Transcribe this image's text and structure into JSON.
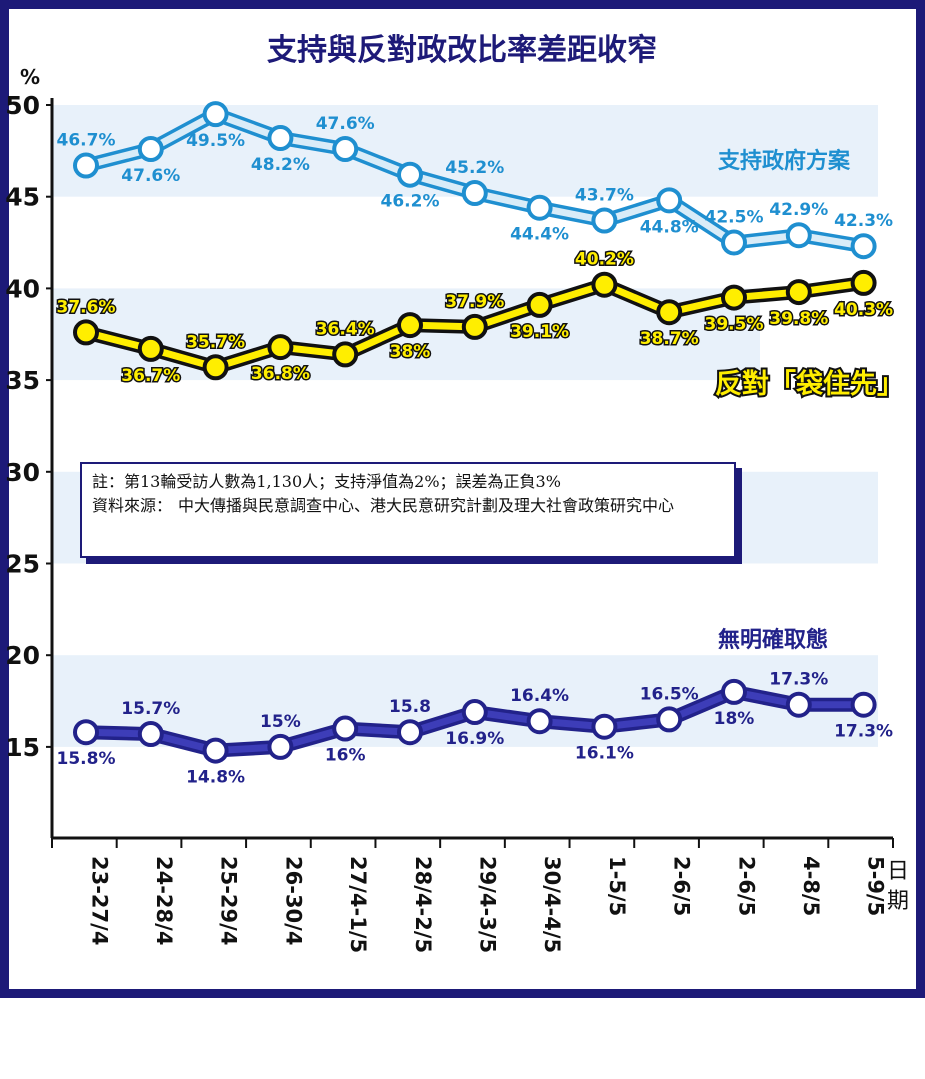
{
  "chart_data": {
    "type": "line",
    "title": "支持與反對政改比率差距收窄",
    "ylabel": "%",
    "xlabel": "日期",
    "ylim": [
      10,
      50
    ],
    "yticks": [
      15,
      20,
      25,
      30,
      35,
      40,
      45,
      50
    ],
    "categories": [
      "23-27/4",
      "24-28/4",
      "25-29/4",
      "26-30/4",
      "27/4-1/5",
      "28/4-2/5",
      "29/4-3/5",
      "30/4-4/5",
      "1-5/5",
      "2-6/5",
      "2-6/5",
      "4-8/5",
      "5-9/5"
    ],
    "series": [
      {
        "name": "支持政府方案",
        "color": "#1f8fd0",
        "values": [
          46.7,
          47.6,
          49.5,
          48.2,
          47.6,
          46.2,
          45.2,
          44.4,
          43.7,
          44.8,
          42.5,
          42.9,
          42.3
        ],
        "labels": [
          "46.7%",
          "47.6%",
          "49.5%",
          "48.2%",
          "47.6%",
          "46.2%",
          "45.2%",
          "44.4%",
          "43.7%",
          "44.8%",
          "42.5%",
          "42.9%",
          "42.3%"
        ]
      },
      {
        "name": "反對「袋住先」",
        "color": "#ffee00",
        "values": [
          37.6,
          36.7,
          35.7,
          36.8,
          36.4,
          38.0,
          37.9,
          39.1,
          40.2,
          38.7,
          39.5,
          39.8,
          40.3
        ],
        "labels": [
          "37.6%",
          "36.7%",
          "35.7%",
          "36.8%",
          "36.4%",
          "38%",
          "37.9%",
          "39.1%",
          "40.2%",
          "38.7%",
          "39.5%",
          "39.8%",
          "40.3%"
        ]
      },
      {
        "name": "無明確取態",
        "color": "#2a2a9a",
        "values": [
          15.8,
          15.7,
          14.8,
          15.0,
          16.0,
          15.8,
          16.9,
          16.4,
          16.1,
          16.5,
          18.0,
          17.3,
          17.3
        ],
        "labels": [
          "15.8%",
          "15.7%",
          "14.8%",
          "15%",
          "16%",
          "15.8",
          "16.9%",
          "16.4%",
          "16.1%",
          "16.5%",
          "18%",
          "17.3%",
          "17.3%"
        ]
      }
    ]
  },
  "note": {
    "line1": "註：第13輪受訪人數為1,130人；支持淨值為2%；誤差為正負3%",
    "source_label": "資料來源：",
    "source_text": "中大傳播與民意調查中心、港大民意研究計劃及理大社會政策研究中心"
  }
}
